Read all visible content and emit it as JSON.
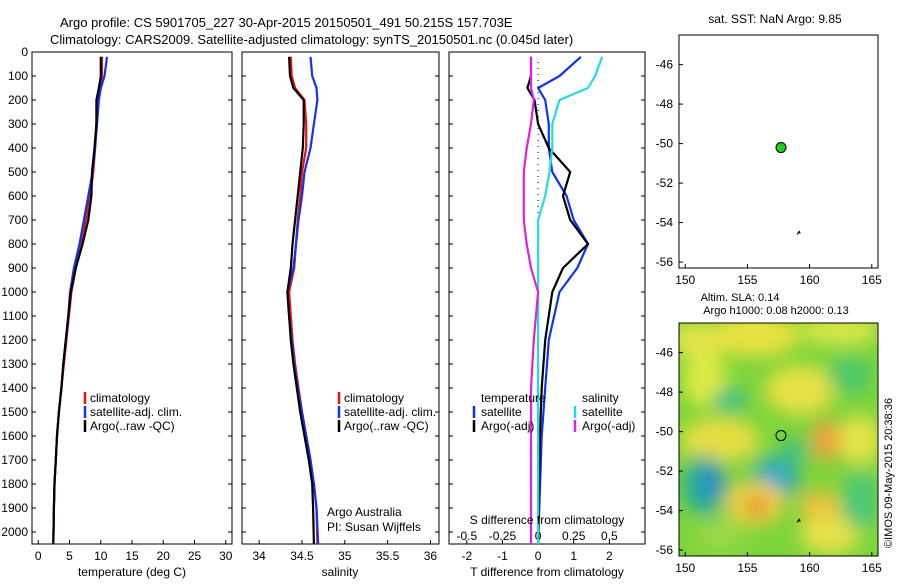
{
  "header": {
    "line1": "Argo profile: CS 5901705_227 30-Apr-2015 20150501_491 50.215S 157.703E",
    "line2": "Climatology: CARS2009. Satellite-adjusted climatology: synTS_20150501.nc (0.045d later)"
  },
  "colors": {
    "climatology": "#ee1111",
    "satellite": "#1133ee",
    "argo": "#000000",
    "salinity_satellite": "#22dddd",
    "salinity_argo": "#dd22dd",
    "float_marker": "#22cc22"
  },
  "legend_profile": [
    "climatology",
    "satellite-adj. clim.",
    "Argo(..raw -QC)"
  ],
  "legend_diff": {
    "temperature_heading": "temperature",
    "salinity_heading": "salinity",
    "satellite": "satellite",
    "argo": "Argo(-adj)"
  },
  "credit": {
    "line1": "Argo Australia",
    "line2": "PI: Susan Wijffels"
  },
  "map_sst": {
    "title": "sat. SST: NaN Argo: 9.85"
  },
  "map_sla": {
    "title1": "Altim. SLA: 0.14",
    "title2": "Argo h1000: 0.08 h2000: 0.13"
  },
  "watermark": "©IMOS 09-May-2015 20:38:36",
  "chart_data": [
    {
      "type": "line",
      "xlabel": "temperature (deg C)",
      "ylim": [
        0,
        2050
      ],
      "xlim": [
        -1,
        31
      ],
      "xticks": [
        0,
        5,
        10,
        15,
        20,
        25,
        30
      ],
      "yticks": [
        0,
        100,
        200,
        300,
        400,
        500,
        600,
        700,
        800,
        900,
        1000,
        1100,
        1200,
        1300,
        1400,
        1500,
        1600,
        1700,
        1800,
        1900,
        2000
      ],
      "y_reversed": true,
      "series": [
        {
          "name": "climatology",
          "x": [
            10.2,
            10.2,
            10.0,
            9.6,
            9.3,
            9.1,
            8.8,
            8.3,
            7.6,
            6.9,
            6.0,
            5.3,
            4.9,
            4.5,
            4.1,
            3.7,
            3.3,
            3.0,
            2.8,
            2.6,
            2.5,
            2.4
          ],
          "y": [
            20,
            100,
            150,
            200,
            300,
            400,
            500,
            600,
            700,
            800,
            900,
            1000,
            1100,
            1200,
            1300,
            1400,
            1500,
            1600,
            1700,
            1800,
            1900,
            2050
          ]
        },
        {
          "name": "satellite-adj. clim.",
          "x": [
            11.0,
            10.6,
            10.0,
            9.7,
            9.4,
            9.1,
            8.7,
            8.0,
            7.3,
            6.6,
            5.7,
            5.1,
            4.8,
            4.4,
            4.0,
            3.7,
            3.3,
            3.0,
            2.8,
            2.6,
            2.5,
            2.4
          ],
          "y": [
            20,
            100,
            150,
            200,
            300,
            400,
            500,
            600,
            700,
            800,
            900,
            1000,
            1100,
            1200,
            1300,
            1400,
            1500,
            1600,
            1700,
            1800,
            1900,
            2050
          ]
        },
        {
          "name": "Argo(..raw -QC)",
          "x": [
            10.0,
            10.0,
            9.7,
            9.3,
            9.3,
            9.0,
            8.6,
            8.5,
            8.0,
            7.1,
            6.0,
            5.2,
            4.8,
            4.4,
            4.0,
            3.7,
            3.3,
            3.0,
            2.8,
            2.6,
            2.5,
            2.4
          ],
          "y": [
            20,
            100,
            150,
            200,
            300,
            400,
            500,
            600,
            700,
            800,
            900,
            1000,
            1100,
            1200,
            1300,
            1400,
            1500,
            1600,
            1700,
            1800,
            1900,
            2050
          ]
        }
      ]
    },
    {
      "type": "line",
      "xlabel": "salinity",
      "ylim": [
        0,
        2050
      ],
      "xlim": [
        33.8,
        36.1
      ],
      "xticks": [
        34,
        34.5,
        35,
        35.5,
        36
      ],
      "y_reversed": true,
      "series": [
        {
          "name": "climatology",
          "x": [
            34.37,
            34.38,
            34.42,
            34.53,
            34.55,
            34.55,
            34.5,
            34.48,
            34.45,
            34.43,
            34.41,
            34.35,
            34.37,
            34.39,
            34.42,
            34.46,
            34.5,
            34.55,
            34.6,
            34.64,
            34.67,
            34.68
          ],
          "y": [
            20,
            100,
            150,
            200,
            300,
            400,
            500,
            600,
            700,
            800,
            900,
            1000,
            1100,
            1200,
            1300,
            1400,
            1500,
            1600,
            1700,
            1800,
            1900,
            2050
          ]
        },
        {
          "name": "satellite-adj. clim.",
          "x": [
            34.6,
            34.62,
            34.67,
            34.68,
            34.64,
            34.6,
            34.53,
            34.5,
            34.46,
            34.43,
            34.4,
            34.33,
            34.35,
            34.38,
            34.41,
            34.45,
            34.5,
            34.55,
            34.6,
            34.64,
            34.67,
            34.69
          ],
          "y": [
            20,
            100,
            150,
            200,
            300,
            400,
            500,
            600,
            700,
            800,
            900,
            1000,
            1100,
            1200,
            1300,
            1400,
            1500,
            1600,
            1700,
            1800,
            1900,
            2050
          ]
        },
        {
          "name": "Argo(..raw -QC)",
          "x": [
            34.35,
            34.36,
            34.4,
            34.52,
            34.52,
            34.51,
            34.48,
            34.45,
            34.42,
            34.39,
            34.37,
            34.33,
            34.35,
            34.37,
            34.4,
            34.44,
            34.48,
            34.53,
            34.58,
            34.62,
            34.63,
            34.64
          ],
          "y": [
            20,
            100,
            150,
            200,
            300,
            400,
            500,
            600,
            700,
            800,
            900,
            1000,
            1100,
            1200,
            1300,
            1400,
            1500,
            1600,
            1700,
            1800,
            1900,
            2050
          ]
        }
      ]
    },
    {
      "type": "line",
      "xlabel": "T difference from climatology",
      "xlabel_top": "S difference from climatology",
      "ylim": [
        0,
        2050
      ],
      "xlim": [
        -2.5,
        3.0
      ],
      "xticks": [
        -2,
        -1,
        0,
        1,
        2
      ],
      "xticks_salinity": [
        "-0.5",
        "-0.25",
        "0",
        "0.25",
        "0.5"
      ],
      "y_reversed": true,
      "series": [
        {
          "name": "temperature satellite",
          "x": [
            1.2,
            0.6,
            0.0,
            0.2,
            0.3,
            0.3,
            0.4,
            0.8,
            1.0,
            1.4,
            1.1,
            0.6,
            0.3,
            0.2,
            0.1,
            0.0
          ],
          "y": [
            20,
            100,
            150,
            200,
            300,
            400,
            500,
            600,
            700,
            800,
            900,
            1000,
            1200,
            1400,
            1600,
            2050
          ]
        },
        {
          "name": "temperature Argo(-adj)",
          "x": [
            -0.2,
            -0.2,
            -0.3,
            -0.1,
            0.0,
            0.3,
            0.9,
            0.7,
            0.9,
            1.4,
            0.7,
            0.4,
            0.2,
            0.1,
            0.05,
            0.0
          ],
          "y": [
            20,
            100,
            150,
            200,
            300,
            400,
            500,
            600,
            700,
            800,
            900,
            1000,
            1200,
            1400,
            1600,
            2050
          ]
        },
        {
          "name": "salinity satellite",
          "x": [
            0.45,
            0.4,
            0.35,
            0.15,
            0.1,
            0.1,
            0.08,
            0.05,
            0.0,
            0.0,
            0.0,
            0.0,
            0.0,
            0.0,
            0.0,
            0.0
          ],
          "y": [
            20,
            100,
            150,
            200,
            300,
            400,
            500,
            600,
            700,
            800,
            900,
            1000,
            1200,
            1400,
            1600,
            2050
          ]
        },
        {
          "name": "salinity Argo(-adj)",
          "x": [
            -0.05,
            -0.05,
            -0.05,
            -0.03,
            -0.05,
            -0.08,
            -0.1,
            -0.1,
            -0.1,
            -0.08,
            -0.05,
            0.0,
            -0.03,
            -0.05,
            -0.05,
            -0.05
          ],
          "y": [
            20,
            100,
            150,
            200,
            300,
            400,
            500,
            600,
            700,
            800,
            900,
            1000,
            1200,
            1400,
            1600,
            2050
          ]
        }
      ]
    },
    {
      "type": "scatter",
      "title": "sat. SST: NaN Argo: 9.85",
      "xlim": [
        149.5,
        165.5
      ],
      "ylim": [
        -56.3,
        -44.5
      ],
      "xticks": [
        150,
        155,
        160,
        165
      ],
      "yticks": [
        -46,
        -48,
        -50,
        -52,
        -54,
        -56
      ],
      "points": [
        {
          "lon": 157.7,
          "lat": -50.2
        }
      ]
    },
    {
      "type": "heatmap",
      "title": "Altim. SLA: 0.14 Argo h1000: 0.08 h2000: 0.13",
      "xlim": [
        149.5,
        165.5
      ],
      "ylim": [
        -56.3,
        -44.5
      ],
      "xticks": [
        150,
        155,
        160,
        165
      ],
      "yticks": [
        -46,
        -48,
        -50,
        -52,
        -54,
        -56
      ],
      "points": [
        {
          "lon": 157.7,
          "lat": -50.2
        }
      ]
    }
  ]
}
